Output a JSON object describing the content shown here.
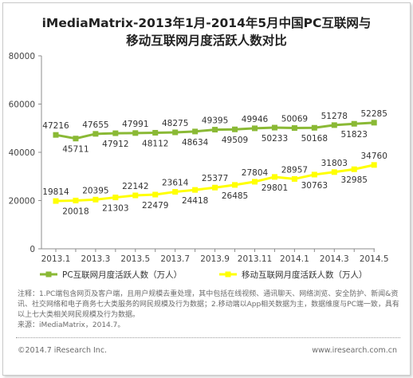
{
  "title_line1": "iMediaMatrix-2013年1月-2014年5月中国PC互联网与",
  "title_line2": "移动互联网月度活跃人数对比",
  "notes": {
    "note": "注释：1.PC端包含网页及客户端，且用户规模去重处理，其中包括在线视频、通讯聊天、网络浏览、安全防护、新闻&资讯、社交网络和电子商务七大类服务的网民规模及行为数据；2.移动端以App相关数据为主，数据维度与PC端一致，具有以上七大类相关网民规模及行为数据。",
    "source": "来源：iMediaMatrix，2014.7。"
  },
  "footer": {
    "left": "©2014.7 iResearch Inc.",
    "right": "www.iresearch.com.cn"
  },
  "chart_data": {
    "type": "line",
    "x": [
      "2013.1",
      "2013.2",
      "2013.3",
      "2013.4",
      "2013.5",
      "2013.6",
      "2013.7",
      "2013.8",
      "2013.9",
      "2013.10",
      "2013.11",
      "2013.12",
      "2014.1",
      "2014.2",
      "2014.3",
      "2014.4",
      "2014.5"
    ],
    "xticks": [
      "2013.1",
      "2013.3",
      "2013.5",
      "2013.7",
      "2013.9",
      "2013.11",
      "2014.1",
      "2014.3",
      "2014.5"
    ],
    "ylim": [
      0,
      80000
    ],
    "yticks": [
      0,
      20000,
      40000,
      60000,
      80000
    ],
    "grid": false,
    "legend_position": "bottom",
    "series": [
      {
        "name": "PC互联网月度活跃人数（万人）",
        "color": "#8ab935",
        "values": [
          47216,
          45711,
          47655,
          47912,
          47991,
          48112,
          48275,
          48634,
          49395,
          49509,
          49946,
          50233,
          50069,
          50168,
          51278,
          51823,
          52285
        ]
      },
      {
        "name": "移动互联网月度活跃人数（万人）",
        "color": "#ffff00",
        "values": [
          19814,
          20018,
          20395,
          21303,
          22142,
          22479,
          23614,
          24418,
          25377,
          26485,
          27804,
          29801,
          28957,
          30763,
          31803,
          32985,
          34760
        ]
      }
    ]
  }
}
